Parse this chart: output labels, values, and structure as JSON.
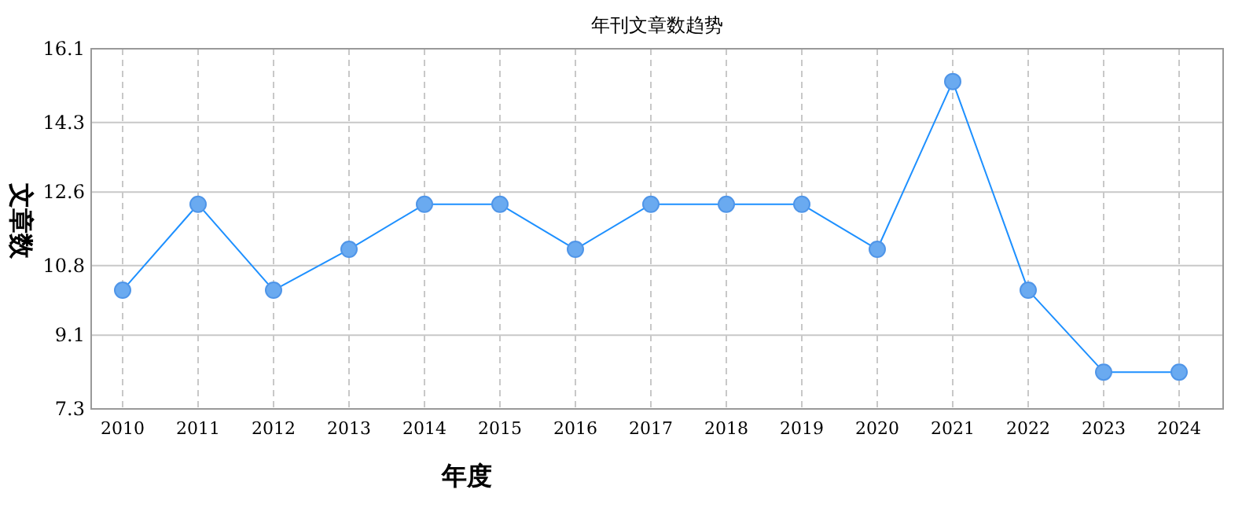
{
  "chart_data": {
    "type": "line",
    "title": "年刊文章数趋势",
    "xlabel": "年度",
    "ylabel": "文章数",
    "categories": [
      "2010",
      "2011",
      "2012",
      "2013",
      "2014",
      "2015",
      "2016",
      "2017",
      "2018",
      "2019",
      "2020",
      "2021",
      "2022",
      "2023",
      "2024"
    ],
    "series": [
      {
        "color": "#1e90ff",
        "values": [
          10.2,
          12.3,
          10.2,
          11.2,
          12.3,
          12.3,
          11.2,
          12.3,
          12.3,
          12.3,
          11.2,
          15.3,
          10.2,
          8.2,
          8.2
        ]
      }
    ],
    "ylim": [
      7.3,
      16.1
    ],
    "yticks": [
      7.3,
      9.1,
      10.8,
      12.6,
      14.3,
      16.1
    ],
    "grid": true,
    "marker": "circle",
    "line_style": "solid"
  }
}
